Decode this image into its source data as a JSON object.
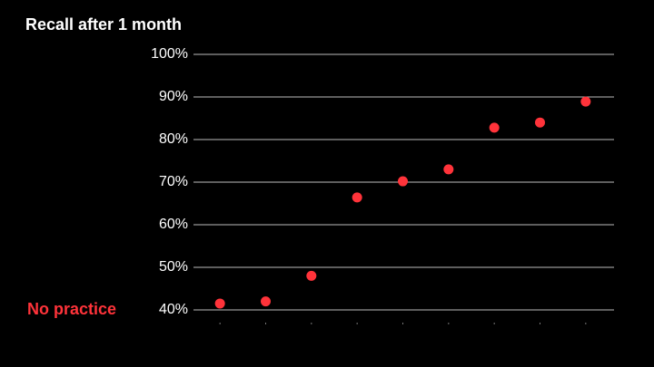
{
  "chart_data": {
    "type": "dot",
    "title": "Recall after 1 month",
    "annotation": "No practice",
    "categories": [
      null,
      null,
      null,
      null,
      null,
      null,
      null,
      null,
      null
    ],
    "values": [
      41.5,
      42,
      48,
      66.4,
      70.2,
      73,
      82.8,
      84,
      88.9
    ],
    "color": "#ff333a",
    "ylim": [
      40,
      100
    ],
    "yticks": [
      {
        "value": 40,
        "label": "40%"
      },
      {
        "value": 50,
        "label": "50%"
      },
      {
        "value": 60,
        "label": "60%"
      },
      {
        "value": 70,
        "label": "70%"
      },
      {
        "value": 80,
        "label": "80%"
      },
      {
        "value": 90,
        "label": "90%"
      },
      {
        "value": 100,
        "label": "100%"
      }
    ],
    "grid": true
  }
}
